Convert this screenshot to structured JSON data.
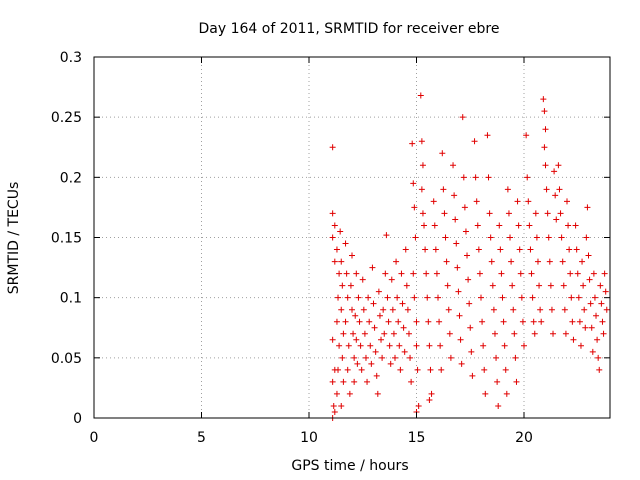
{
  "chart_data": {
    "type": "scatter",
    "title": "Day 164 of 2011, SRMTID for receiver ebre",
    "xlabel": "GPS time / hours",
    "ylabel": "SRMTID / TECUs",
    "xlim": [
      0,
      24
    ],
    "ylim": [
      0,
      0.3
    ],
    "x_ticks": [
      0,
      5,
      10,
      15,
      20
    ],
    "x_tick_labels": [
      "0",
      "5",
      "10",
      "15",
      "20"
    ],
    "y_ticks": [
      0,
      0.05,
      0.1,
      0.15,
      0.2,
      0.25,
      0.3
    ],
    "y_tick_labels": [
      "0",
      "0.05",
      "0.1",
      "0.15",
      "0.2",
      "0.25",
      "0.3"
    ],
    "grid": true,
    "marker": "+",
    "series": [
      {
        "name": "SRMTID",
        "color": "#e00000",
        "points": [
          [
            11.1,
            0.225
          ],
          [
            11.1,
            0.17
          ],
          [
            11.2,
            0.16
          ],
          [
            11.1,
            0.15
          ],
          [
            11.2,
            0.13
          ],
          [
            11.1,
            0.065
          ],
          [
            11.2,
            0.04
          ],
          [
            11.1,
            0.03
          ],
          [
            11.15,
            0.01
          ],
          [
            11.2,
            0.005
          ],
          [
            11.1,
            0.0
          ],
          [
            11.3,
            0.02
          ],
          [
            11.35,
            0.04
          ],
          [
            11.4,
            0.06
          ],
          [
            11.3,
            0.08
          ],
          [
            11.35,
            0.1
          ],
          [
            11.4,
            0.12
          ],
          [
            11.3,
            0.14
          ],
          [
            11.45,
            0.155
          ],
          [
            11.5,
            0.13
          ],
          [
            11.55,
            0.11
          ],
          [
            11.5,
            0.09
          ],
          [
            11.6,
            0.07
          ],
          [
            11.55,
            0.05
          ],
          [
            11.6,
            0.03
          ],
          [
            11.5,
            0.01
          ],
          [
            11.7,
            0.145
          ],
          [
            11.75,
            0.12
          ],
          [
            11.8,
            0.1
          ],
          [
            11.7,
            0.08
          ],
          [
            11.85,
            0.06
          ],
          [
            11.8,
            0.04
          ],
          [
            11.9,
            0.02
          ],
          [
            11.95,
            0.11
          ],
          [
            12.0,
            0.09
          ],
          [
            12.0,
            0.135
          ],
          [
            12.05,
            0.07
          ],
          [
            12.1,
            0.05
          ],
          [
            12.1,
            0.03
          ],
          [
            12.15,
            0.085
          ],
          [
            12.2,
            0.12
          ],
          [
            12.2,
            0.065
          ],
          [
            12.25,
            0.045
          ],
          [
            12.3,
            0.1
          ],
          [
            12.35,
            0.08
          ],
          [
            12.4,
            0.06
          ],
          [
            12.45,
            0.04
          ],
          [
            12.5,
            0.115
          ],
          [
            12.55,
            0.09
          ],
          [
            12.6,
            0.07
          ],
          [
            12.65,
            0.05
          ],
          [
            12.7,
            0.03
          ],
          [
            12.75,
            0.1
          ],
          [
            12.8,
            0.08
          ],
          [
            12.85,
            0.06
          ],
          [
            12.9,
            0.045
          ],
          [
            12.95,
            0.125
          ],
          [
            13.0,
            0.095
          ],
          [
            13.05,
            0.075
          ],
          [
            13.1,
            0.055
          ],
          [
            13.15,
            0.035
          ],
          [
            13.2,
            0.02
          ],
          [
            13.25,
            0.105
          ],
          [
            13.3,
            0.085
          ],
          [
            13.35,
            0.065
          ],
          [
            13.4,
            0.05
          ],
          [
            13.45,
            0.09
          ],
          [
            13.5,
            0.07
          ],
          [
            13.55,
            0.12
          ],
          [
            13.6,
            0.152
          ],
          [
            13.65,
            0.1
          ],
          [
            13.7,
            0.08
          ],
          [
            13.75,
            0.06
          ],
          [
            13.8,
            0.045
          ],
          [
            13.85,
            0.115
          ],
          [
            13.9,
            0.09
          ],
          [
            13.95,
            0.07
          ],
          [
            14.0,
            0.05
          ],
          [
            14.05,
            0.13
          ],
          [
            14.1,
            0.1
          ],
          [
            14.15,
            0.08
          ],
          [
            14.2,
            0.06
          ],
          [
            14.25,
            0.04
          ],
          [
            14.3,
            0.12
          ],
          [
            14.35,
            0.095
          ],
          [
            14.4,
            0.075
          ],
          [
            14.45,
            0.055
          ],
          [
            14.5,
            0.14
          ],
          [
            14.55,
            0.11
          ],
          [
            14.6,
            0.09
          ],
          [
            14.65,
            0.07
          ],
          [
            14.7,
            0.05
          ],
          [
            14.75,
            0.03
          ],
          [
            14.8,
            0.228
          ],
          [
            14.85,
            0.195
          ],
          [
            14.9,
            0.175
          ],
          [
            14.95,
            0.15
          ],
          [
            14.85,
            0.12
          ],
          [
            14.9,
            0.1
          ],
          [
            15.0,
            0.08
          ],
          [
            15.0,
            0.06
          ],
          [
            15.05,
            0.04
          ],
          [
            15.1,
            0.01
          ],
          [
            15.0,
            0.005
          ],
          [
            15.2,
            0.268
          ],
          [
            15.25,
            0.23
          ],
          [
            15.3,
            0.21
          ],
          [
            15.25,
            0.19
          ],
          [
            15.3,
            0.17
          ],
          [
            15.35,
            0.16
          ],
          [
            15.4,
            0.14
          ],
          [
            15.45,
            0.12
          ],
          [
            15.5,
            0.1
          ],
          [
            15.55,
            0.08
          ],
          [
            15.6,
            0.06
          ],
          [
            15.65,
            0.04
          ],
          [
            15.7,
            0.02
          ],
          [
            15.6,
            0.015
          ],
          [
            15.8,
            0.18
          ],
          [
            15.85,
            0.16
          ],
          [
            15.9,
            0.14
          ],
          [
            15.95,
            0.12
          ],
          [
            16.0,
            0.1
          ],
          [
            16.05,
            0.08
          ],
          [
            16.1,
            0.06
          ],
          [
            16.15,
            0.04
          ],
          [
            16.2,
            0.22
          ],
          [
            16.25,
            0.19
          ],
          [
            16.3,
            0.17
          ],
          [
            16.35,
            0.15
          ],
          [
            16.4,
            0.13
          ],
          [
            16.45,
            0.11
          ],
          [
            16.5,
            0.09
          ],
          [
            16.55,
            0.07
          ],
          [
            16.6,
            0.05
          ],
          [
            16.7,
            0.21
          ],
          [
            16.75,
            0.185
          ],
          [
            16.8,
            0.165
          ],
          [
            16.85,
            0.145
          ],
          [
            16.9,
            0.125
          ],
          [
            16.95,
            0.105
          ],
          [
            17.0,
            0.085
          ],
          [
            17.05,
            0.065
          ],
          [
            17.1,
            0.045
          ],
          [
            17.15,
            0.25
          ],
          [
            17.2,
            0.2
          ],
          [
            17.25,
            0.175
          ],
          [
            17.3,
            0.155
          ],
          [
            17.35,
            0.135
          ],
          [
            17.4,
            0.115
          ],
          [
            17.45,
            0.095
          ],
          [
            17.5,
            0.075
          ],
          [
            17.55,
            0.055
          ],
          [
            17.6,
            0.035
          ],
          [
            17.7,
            0.23
          ],
          [
            17.75,
            0.2
          ],
          [
            17.8,
            0.18
          ],
          [
            17.85,
            0.16
          ],
          [
            17.9,
            0.14
          ],
          [
            17.95,
            0.12
          ],
          [
            18.0,
            0.1
          ],
          [
            18.05,
            0.08
          ],
          [
            18.1,
            0.06
          ],
          [
            18.15,
            0.04
          ],
          [
            18.2,
            0.02
          ],
          [
            18.3,
            0.235
          ],
          [
            18.35,
            0.2
          ],
          [
            18.4,
            0.17
          ],
          [
            18.45,
            0.15
          ],
          [
            18.5,
            0.13
          ],
          [
            18.55,
            0.11
          ],
          [
            18.6,
            0.09
          ],
          [
            18.65,
            0.07
          ],
          [
            18.7,
            0.05
          ],
          [
            18.75,
            0.03
          ],
          [
            18.8,
            0.01
          ],
          [
            18.85,
            0.16
          ],
          [
            18.9,
            0.14
          ],
          [
            18.95,
            0.12
          ],
          [
            19.0,
            0.1
          ],
          [
            19.05,
            0.08
          ],
          [
            19.1,
            0.06
          ],
          [
            19.15,
            0.04
          ],
          [
            19.2,
            0.02
          ],
          [
            19.25,
            0.19
          ],
          [
            19.3,
            0.17
          ],
          [
            19.35,
            0.15
          ],
          [
            19.4,
            0.13
          ],
          [
            19.45,
            0.11
          ],
          [
            19.5,
            0.09
          ],
          [
            19.55,
            0.07
          ],
          [
            19.6,
            0.05
          ],
          [
            19.65,
            0.03
          ],
          [
            19.7,
            0.18
          ],
          [
            19.75,
            0.16
          ],
          [
            19.8,
            0.14
          ],
          [
            19.85,
            0.12
          ],
          [
            19.9,
            0.1
          ],
          [
            19.95,
            0.08
          ],
          [
            20.0,
            0.06
          ],
          [
            20.1,
            0.235
          ],
          [
            20.15,
            0.2
          ],
          [
            20.2,
            0.18
          ],
          [
            20.25,
            0.16
          ],
          [
            20.3,
            0.14
          ],
          [
            20.35,
            0.12
          ],
          [
            20.4,
            0.1
          ],
          [
            20.45,
            0.08
          ],
          [
            20.5,
            0.07
          ],
          [
            20.55,
            0.17
          ],
          [
            20.6,
            0.15
          ],
          [
            20.65,
            0.13
          ],
          [
            20.7,
            0.11
          ],
          [
            20.75,
            0.09
          ],
          [
            20.8,
            0.08
          ],
          [
            20.9,
            0.265
          ],
          [
            20.95,
            0.255
          ],
          [
            21.0,
            0.24
          ],
          [
            20.95,
            0.225
          ],
          [
            21.0,
            0.21
          ],
          [
            21.05,
            0.19
          ],
          [
            21.1,
            0.17
          ],
          [
            21.15,
            0.15
          ],
          [
            21.2,
            0.13
          ],
          [
            21.25,
            0.11
          ],
          [
            21.3,
            0.09
          ],
          [
            21.35,
            0.07
          ],
          [
            21.4,
            0.205
          ],
          [
            21.45,
            0.185
          ],
          [
            21.5,
            0.165
          ],
          [
            21.6,
            0.21
          ],
          [
            21.65,
            0.19
          ],
          [
            21.7,
            0.17
          ],
          [
            21.75,
            0.15
          ],
          [
            21.8,
            0.13
          ],
          [
            21.85,
            0.11
          ],
          [
            21.9,
            0.09
          ],
          [
            21.95,
            0.07
          ],
          [
            22.0,
            0.18
          ],
          [
            22.05,
            0.16
          ],
          [
            22.1,
            0.14
          ],
          [
            22.15,
            0.12
          ],
          [
            22.2,
            0.1
          ],
          [
            22.25,
            0.08
          ],
          [
            22.3,
            0.065
          ],
          [
            22.4,
            0.16
          ],
          [
            22.45,
            0.14
          ],
          [
            22.5,
            0.12
          ],
          [
            22.55,
            0.1
          ],
          [
            22.6,
            0.08
          ],
          [
            22.65,
            0.06
          ],
          [
            22.7,
            0.13
          ],
          [
            22.75,
            0.11
          ],
          [
            22.8,
            0.09
          ],
          [
            22.85,
            0.075
          ],
          [
            22.9,
            0.15
          ],
          [
            22.95,
            0.175
          ],
          [
            23.0,
            0.135
          ],
          [
            23.05,
            0.115
          ],
          [
            23.1,
            0.095
          ],
          [
            23.15,
            0.075
          ],
          [
            23.2,
            0.055
          ],
          [
            23.25,
            0.12
          ],
          [
            23.3,
            0.1
          ],
          [
            23.35,
            0.085
          ],
          [
            23.4,
            0.065
          ],
          [
            23.45,
            0.05
          ],
          [
            23.5,
            0.04
          ],
          [
            23.55,
            0.11
          ],
          [
            23.6,
            0.095
          ],
          [
            23.65,
            0.08
          ],
          [
            23.7,
            0.07
          ],
          [
            23.75,
            0.12
          ],
          [
            23.8,
            0.105
          ],
          [
            23.85,
            0.09
          ]
        ]
      }
    ]
  }
}
